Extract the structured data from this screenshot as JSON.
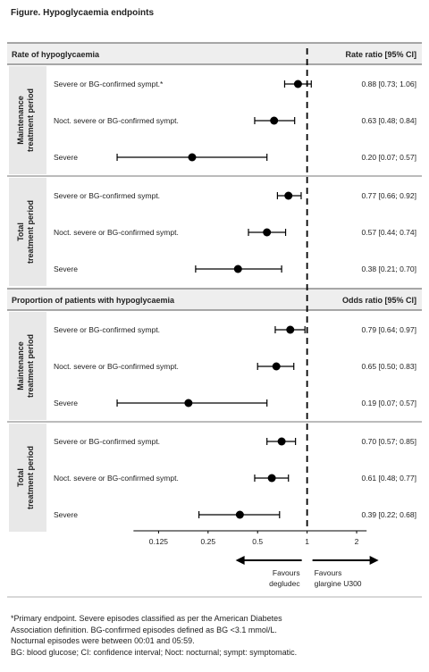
{
  "figure": {
    "title": "Figure. Hypoglycaemia endpoints"
  },
  "footnotes": [
    "*Primary endpoint. Severe episodes classified as per the American Diabetes",
    "Association definition. BG-confirmed episodes defined as BG <3.1 mmol/L.",
    "Nocturnal episodes were between 00:01 and 05:59.",
    "BG: blood glucose; CI: confidence interval; Noct: nocturnal; sympt: symptomatic."
  ],
  "colors": {
    "header_bg": "#eeeeee",
    "group_bg": "#e8e8e8",
    "marker": "#000000",
    "text": "#222222"
  },
  "chart_data": {
    "type": "forest",
    "x_scale": "log2",
    "xlim": [
      0.0625,
      2.6
    ],
    "x_ticks": [
      0.125,
      0.25,
      0.5,
      1,
      2
    ],
    "x_tick_labels": [
      "0.125",
      "0.25",
      "0.5",
      "1",
      "2"
    ],
    "reference_line": 1,
    "favours_left": [
      "Favours",
      "degludec"
    ],
    "favours_right": [
      "Favours",
      "glargine U300"
    ],
    "panels": [
      {
        "header": "Rate of hypoglycaemia",
        "stat_header": "Rate ratio [95% CI]",
        "groups": [
          {
            "label": [
              "Maintenance",
              "treatment period"
            ],
            "rows": [
              {
                "label": "Severe or BG-confirmed sympt.*",
                "est": 0.88,
                "lo": 0.73,
                "hi": 1.06,
                "ci_text": "0.88 [0.73; 1.06]"
              },
              {
                "label": "Noct. severe or BG-confirmed sympt.",
                "est": 0.63,
                "lo": 0.48,
                "hi": 0.84,
                "ci_text": "0.63 [0.48; 0.84]"
              },
              {
                "label": "Severe",
                "est": 0.2,
                "lo": 0.07,
                "hi": 0.57,
                "ci_text": "0.20 [0.07; 0.57]"
              }
            ]
          },
          {
            "label": [
              "Total",
              "treatment period"
            ],
            "rows": [
              {
                "label": "Severe or BG-confirmed sympt.",
                "est": 0.77,
                "lo": 0.66,
                "hi": 0.92,
                "ci_text": "0.77 [0.66; 0.92]"
              },
              {
                "label": "Noct. severe or BG-confirmed sympt.",
                "est": 0.57,
                "lo": 0.44,
                "hi": 0.74,
                "ci_text": "0.57 [0.44; 0.74]"
              },
              {
                "label": "Severe",
                "est": 0.38,
                "lo": 0.21,
                "hi": 0.7,
                "ci_text": "0.38 [0.21; 0.70]"
              }
            ]
          }
        ]
      },
      {
        "header": "Proportion of patients with hypoglycaemia",
        "stat_header": "Odds ratio [95% CI]",
        "groups": [
          {
            "label": [
              "Maintenance",
              "treatment period"
            ],
            "rows": [
              {
                "label": "Severe or BG-confirmed sympt.",
                "est": 0.79,
                "lo": 0.64,
                "hi": 0.97,
                "ci_text": "0.79 [0.64; 0.97]"
              },
              {
                "label": "Noct. severe or BG-confirmed sympt.",
                "est": 0.65,
                "lo": 0.5,
                "hi": 0.83,
                "ci_text": "0.65 [0.50; 0.83]"
              },
              {
                "label": "Severe",
                "est": 0.19,
                "lo": 0.07,
                "hi": 0.57,
                "ci_text": "0.19 [0.07; 0.57]"
              }
            ]
          },
          {
            "label": [
              "Total",
              "treatment period"
            ],
            "rows": [
              {
                "label": "Severe or BG-confirmed sympt.",
                "est": 0.7,
                "lo": 0.57,
                "hi": 0.85,
                "ci_text": "0.70 [0.57; 0.85]"
              },
              {
                "label": "Noct. severe or BG-confirmed sympt.",
                "est": 0.61,
                "lo": 0.48,
                "hi": 0.77,
                "ci_text": "0.61 [0.48; 0.77]"
              },
              {
                "label": "Severe",
                "est": 0.39,
                "lo": 0.22,
                "hi": 0.68,
                "ci_text": "0.39 [0.22; 0.68]"
              }
            ]
          }
        ]
      }
    ]
  }
}
